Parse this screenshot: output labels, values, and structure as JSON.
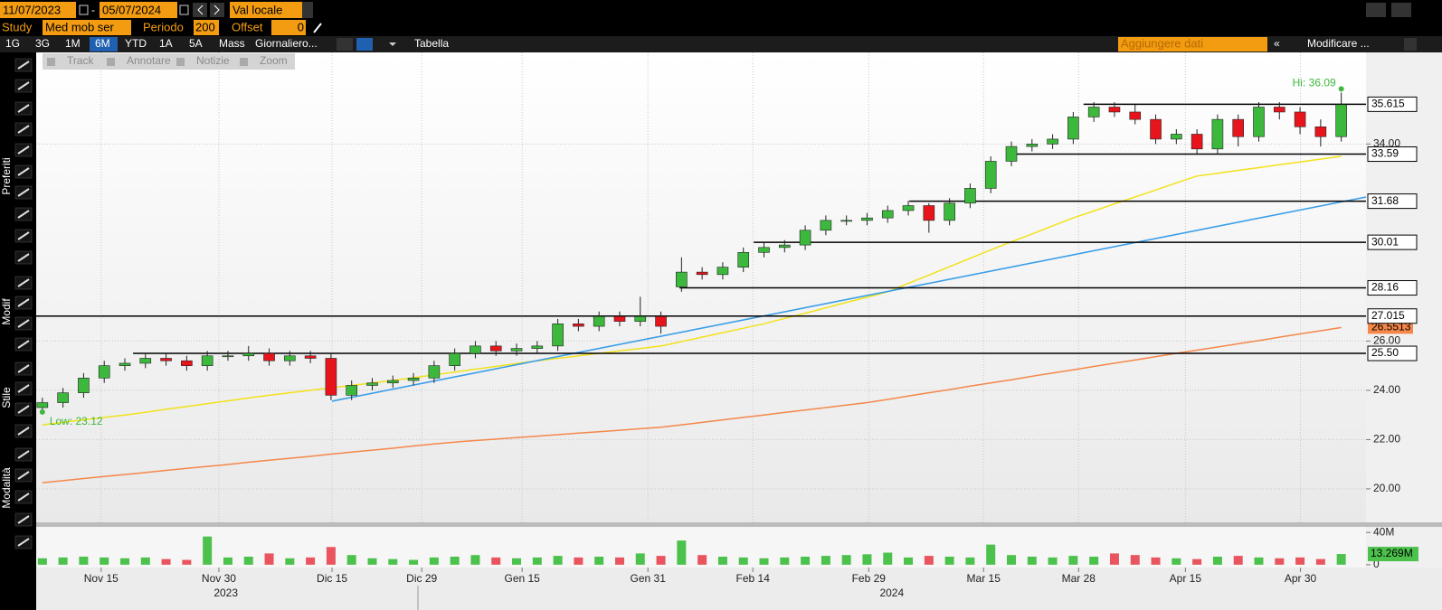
{
  "toolbar": {
    "start_date": "11/07/2023",
    "end_date": "05/07/2024",
    "currency": "Val locale",
    "study_label": "Study",
    "study": "Med mob ser",
    "period_label": "Periodo",
    "period": "200",
    "offset_label": "Offset",
    "offset": "0",
    "ranges": [
      "1G",
      "3G",
      "1M",
      "6M",
      "YTD",
      "1A",
      "5A",
      "Mass"
    ],
    "active_range": 3,
    "frequency": "Giornaliero...",
    "table": "Tabella",
    "add_data": "Aggiungere dati",
    "edit": "Modificare ...",
    "modes": [
      "Track",
      "Annotare",
      "Notizie",
      "Zoom"
    ],
    "sidebar": [
      "Preferiti",
      "Modif",
      "Stile",
      "Modalità"
    ]
  },
  "chart_data": {
    "type": "candlestick",
    "xlim": [
      -0.3,
      64.2
    ],
    "ylim": [
      18.64,
      37.72
    ],
    "xticks": [
      {
        "value": 2.85,
        "label": "Nov 15"
      },
      {
        "value": 8.56,
        "label": "Nov 30"
      },
      {
        "value": 14.05,
        "label": "Dic 15"
      },
      {
        "value": 18.4,
        "label": "Dic 29"
      },
      {
        "value": 23.27,
        "label": "Gen 15"
      },
      {
        "value": 29.37,
        "label": "Gen 31"
      },
      {
        "value": 34.46,
        "label": "Feb 14"
      },
      {
        "value": 40.08,
        "label": "Feb 29"
      },
      {
        "value": 45.65,
        "label": "Mar 15"
      },
      {
        "value": 50.26,
        "label": "Mar 28"
      },
      {
        "value": 55.44,
        "label": "Apr 15"
      },
      {
        "value": 61.02,
        "label": "Apr 30"
      }
    ],
    "years": [
      {
        "value": 8.9,
        "label": "2023"
      },
      {
        "value": 41.2,
        "label": "2024"
      }
    ],
    "yticks": [
      {
        "value": 20,
        "label": "20.00"
      },
      {
        "value": 22,
        "label": "22.00"
      },
      {
        "value": 24,
        "label": "24.00"
      },
      {
        "value": 26,
        "label": "26.00"
      },
      {
        "value": 34,
        "label": "34.00"
      }
    ],
    "grid": true,
    "up_color": "#3cb83c",
    "down_color": "#e8141c",
    "open": [
      23.3,
      23.5,
      23.9,
      24.5,
      25.0,
      25.1,
      25.3,
      25.2,
      25.0,
      25.4,
      25.4,
      25.5,
      25.2,
      25.4,
      25.3,
      23.8,
      24.2,
      24.3,
      24.4,
      24.5,
      25.0,
      25.5,
      25.8,
      25.6,
      25.7,
      25.8,
      26.7,
      26.6,
      27.0,
      26.8,
      27.0,
      28.2,
      28.8,
      28.7,
      29.0,
      29.6,
      29.8,
      29.9,
      30.5,
      30.9,
      30.9,
      31.0,
      31.3,
      31.5,
      30.9,
      31.6,
      32.2,
      33.3,
      33.9,
      34.0,
      34.2,
      35.1,
      35.5,
      35.3,
      35.0,
      34.2,
      34.4,
      33.8,
      35.0,
      34.3,
      35.5,
      35.3,
      34.7,
      34.3
    ],
    "high": [
      23.7,
      24.1,
      24.7,
      25.2,
      25.3,
      25.5,
      25.5,
      25.4,
      25.6,
      25.6,
      25.8,
      25.7,
      25.6,
      25.6,
      25.5,
      24.4,
      24.5,
      24.6,
      24.7,
      25.2,
      25.7,
      26.0,
      26.0,
      25.9,
      26.0,
      26.9,
      26.9,
      27.2,
      27.2,
      27.8,
      27.2,
      29.4,
      29.0,
      29.2,
      29.8,
      30.0,
      30.1,
      30.7,
      31.1,
      31.1,
      31.2,
      31.5,
      31.7,
      31.6,
      31.8,
      32.4,
      33.5,
      34.1,
      34.2,
      34.4,
      35.3,
      35.7,
      35.7,
      35.6,
      35.2,
      34.6,
      34.6,
      35.2,
      35.2,
      35.7,
      35.7,
      35.5,
      35.0,
      36.09
    ],
    "low": [
      23.12,
      23.3,
      23.7,
      24.3,
      24.8,
      24.9,
      25.0,
      24.8,
      24.8,
      25.2,
      25.2,
      25.0,
      25.0,
      25.1,
      23.6,
      23.6,
      24.0,
      24.1,
      24.2,
      24.3,
      24.8,
      25.3,
      25.4,
      25.4,
      25.5,
      25.6,
      26.4,
      26.4,
      26.6,
      26.6,
      26.3,
      28.0,
      28.5,
      28.5,
      28.8,
      29.4,
      29.6,
      29.7,
      30.3,
      30.7,
      30.7,
      30.8,
      31.1,
      30.4,
      30.7,
      31.4,
      32.0,
      33.1,
      33.7,
      33.8,
      34.0,
      34.9,
      35.1,
      34.8,
      34.0,
      34.0,
      33.6,
      33.6,
      33.9,
      34.1,
      35.0,
      34.4,
      33.9,
      34.1
    ],
    "close": [
      23.5,
      23.9,
      24.5,
      25.0,
      25.1,
      25.3,
      25.2,
      25.0,
      25.4,
      25.4,
      25.5,
      25.2,
      25.4,
      25.3,
      23.8,
      24.2,
      24.3,
      24.4,
      24.5,
      25.0,
      25.5,
      25.8,
      25.6,
      25.7,
      25.8,
      26.7,
      26.6,
      27.0,
      26.8,
      27.0,
      26.6,
      28.8,
      28.7,
      29.0,
      29.6,
      29.8,
      29.9,
      30.5,
      30.9,
      30.9,
      31.0,
      31.3,
      31.5,
      30.9,
      31.6,
      32.2,
      33.3,
      33.9,
      34.0,
      34.2,
      35.1,
      35.5,
      35.3,
      35.0,
      34.2,
      34.4,
      33.8,
      35.0,
      34.3,
      35.5,
      35.3,
      34.7,
      34.3,
      35.6
    ],
    "lines": [
      {
        "color": "#f2e21a",
        "values": [
          22.6,
          22.7,
          22.8,
          22.9,
          23.0,
          23.11,
          23.23,
          23.34,
          23.46,
          23.57,
          23.69,
          23.8,
          23.9,
          24.0,
          24.1,
          24.2,
          24.3,
          24.4,
          24.51,
          24.63,
          24.74,
          24.86,
          24.97,
          25.09,
          25.2,
          25.3,
          25.4,
          25.5,
          25.6,
          25.7,
          25.8,
          25.98,
          26.16,
          26.34,
          26.52,
          26.7,
          26.92,
          27.13,
          27.35,
          27.57,
          27.78,
          28.0,
          28.34,
          28.68,
          29.02,
          29.36,
          29.7,
          30.03,
          30.35,
          30.68,
          31.0,
          31.28,
          31.57,
          31.85,
          32.13,
          32.42,
          32.7,
          32.81,
          32.93,
          33.04,
          33.16,
          33.27,
          33.39,
          33.5
        ]
      },
      {
        "color": "#f5874a",
        "values": [
          20.25,
          20.33,
          20.42,
          20.5,
          20.58,
          20.66,
          20.75,
          20.83,
          20.91,
          20.99,
          21.08,
          21.16,
          21.24,
          21.32,
          21.41,
          21.49,
          21.57,
          21.65,
          21.74,
          21.82,
          21.9,
          21.96,
          22.02,
          22.08,
          22.14,
          22.2,
          22.26,
          22.32,
          22.38,
          22.44,
          22.5,
          22.6,
          22.7,
          22.8,
          22.9,
          23.0,
          23.1,
          23.2,
          23.3,
          23.4,
          23.5,
          23.63,
          23.77,
          23.9,
          24.03,
          24.17,
          24.3,
          24.43,
          24.57,
          24.7,
          24.83,
          24.97,
          25.1,
          25.23,
          25.37,
          25.5,
          25.63,
          25.76,
          25.89,
          26.02,
          26.16,
          26.29,
          26.42,
          26.5513
        ],
        "tag": 26.5513
      }
    ],
    "level_color": "#000000",
    "levels": [
      {
        "value": 35.615,
        "start": 50.5
      },
      {
        "value": 33.59,
        "start": 47.2
      },
      {
        "value": 31.68,
        "start": 42.05
      },
      {
        "value": 30.01,
        "start": 34.5
      },
      {
        "value": 28.16,
        "start": 30.9
      },
      {
        "value": 27.015,
        "start": -0.3
      },
      {
        "value": 25.5,
        "label": "25.50",
        "start": 4.4
      }
    ],
    "trendline": {
      "color": "#3a9ee8",
      "x": [
        14.05,
        64.2
      ],
      "values": [
        23.56,
        31.85
      ]
    },
    "hi_label": "Hi: 36.09",
    "low_label": "Low: 23.12",
    "volume": {
      "ylim": [
        -3.5,
        47
      ],
      "yticks": [
        {
          "value": 40,
          "label": "40M"
        },
        0
      ],
      "up_color": "#4cc24c",
      "down_color": "#e8555f",
      "last_label": "13.269M",
      "values": [
        8,
        9,
        10,
        9,
        8,
        9,
        7,
        6,
        35,
        9,
        10,
        14,
        8,
        9,
        22,
        12,
        8,
        7,
        6,
        9,
        10,
        12,
        9,
        8,
        9,
        11,
        9,
        10,
        9,
        14,
        11,
        30,
        12,
        10,
        9,
        8,
        9,
        10,
        11,
        12,
        13,
        15,
        9,
        11,
        10,
        9,
        25,
        12,
        10,
        9,
        11,
        10,
        14,
        12,
        9,
        8,
        7,
        10,
        11,
        9,
        8,
        9,
        7,
        13.269
      ]
    }
  }
}
